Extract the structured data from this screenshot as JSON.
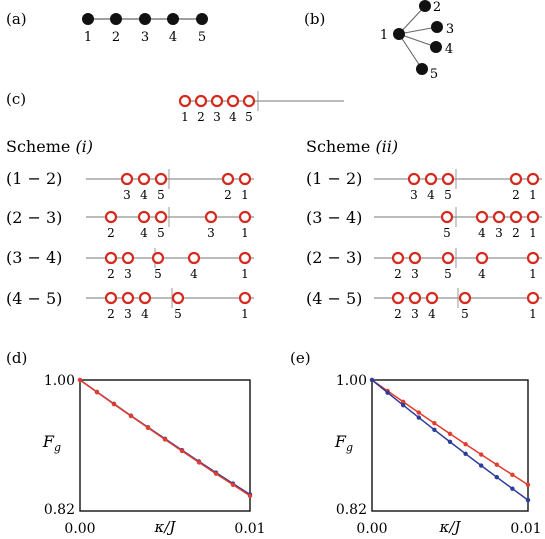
{
  "panels": {
    "a": "(a)",
    "b": "(b)",
    "c": "(c)",
    "d": "(d)",
    "e": "(e)"
  },
  "chain_a": {
    "labels": [
      "1",
      "2",
      "3",
      "4",
      "5"
    ]
  },
  "star_b": {
    "center": "1",
    "leaves": [
      "2",
      "3",
      "4",
      "5"
    ]
  },
  "chain_c": {
    "labels": [
      "1",
      "2",
      "3",
      "4",
      "5"
    ]
  },
  "schemes": {
    "left_title_word": "Scheme",
    "left_title_roman": "(i)",
    "right_title_word": "Scheme",
    "right_title_roman": "(ii)",
    "left_rows": [
      "(1 − 2)",
      "(2 − 3)",
      "(3 − 4)",
      "(4 − 5)"
    ],
    "right_rows": [
      "(1 − 2)",
      "(3 − 4)",
      "(2 − 3)",
      "(4 − 5)"
    ],
    "left_site_labels": [
      [
        "3",
        "4",
        "5",
        "2",
        "1"
      ],
      [
        "2",
        "4",
        "5",
        "3",
        "1"
      ],
      [
        "2",
        "3",
        "5",
        "4",
        "1"
      ],
      [
        "2",
        "3",
        "4",
        "5",
        "1"
      ]
    ],
    "right_site_labels": [
      [
        "3",
        "4",
        "5",
        "2",
        "1"
      ],
      [
        "5",
        "4",
        "3",
        "2",
        "1"
      ],
      [
        "2",
        "3",
        "5",
        "4",
        "1"
      ],
      [
        "2",
        "3",
        "4",
        "5",
        "1"
      ]
    ]
  },
  "colors": {
    "ring": "#d42a1e",
    "series_red": "#e33b2e",
    "series_blue": "#2b3d9a"
  },
  "chart_data": [
    {
      "type": "line",
      "panel": "(d)",
      "xlabel": "κ/J",
      "ylabel": "F_g",
      "xlim": [
        0.0,
        0.01
      ],
      "ylim": [
        0.82,
        1.0
      ],
      "xticks": [
        "0.00",
        "0.01"
      ],
      "yticks": [
        "0.82",
        "1.00"
      ],
      "series": [
        {
          "color": "#2b3d9a",
          "x": [
            0,
            0.001,
            0.002,
            0.003,
            0.004,
            0.005,
            0.006,
            0.007,
            0.008,
            0.009,
            0.01
          ],
          "y": [
            1.0,
            0.9835,
            0.9672,
            0.951,
            0.935,
            0.9192,
            0.9035,
            0.888,
            0.8727,
            0.8576,
            0.8427
          ]
        },
        {
          "color": "#e33b2e",
          "x": [
            0,
            0.001,
            0.002,
            0.003,
            0.004,
            0.005,
            0.006,
            0.007,
            0.008,
            0.009,
            0.01
          ],
          "y": [
            1.0,
            0.9833,
            0.9668,
            0.9505,
            0.9343,
            0.9183,
            0.9025,
            0.8868,
            0.8713,
            0.856,
            0.8409
          ]
        }
      ]
    },
    {
      "type": "line",
      "panel": "(e)",
      "xlabel": "κ/J",
      "ylabel": "F_g",
      "xlim": [
        0.0,
        0.01
      ],
      "ylim": [
        0.82,
        1.0
      ],
      "xticks": [
        "0.00",
        "0.01"
      ],
      "yticks": [
        "0.82",
        "1.00"
      ],
      "series": [
        {
          "color": "#e33b2e",
          "x": [
            0,
            0.001,
            0.002,
            0.003,
            0.004,
            0.005,
            0.006,
            0.007,
            0.008,
            0.009,
            0.01
          ],
          "y": [
            1.0,
            0.9849,
            0.97,
            0.9552,
            0.9406,
            0.9261,
            0.9118,
            0.8976,
            0.8836,
            0.8697,
            0.856
          ]
        },
        {
          "color": "#2b3d9a",
          "x": [
            0,
            0.001,
            0.002,
            0.003,
            0.004,
            0.005,
            0.006,
            0.007,
            0.008,
            0.009,
            0.01
          ],
          "y": [
            1.0,
            0.9826,
            0.9654,
            0.9484,
            0.9316,
            0.915,
            0.8986,
            0.8824,
            0.8664,
            0.8506,
            0.835
          ]
        }
      ]
    }
  ]
}
